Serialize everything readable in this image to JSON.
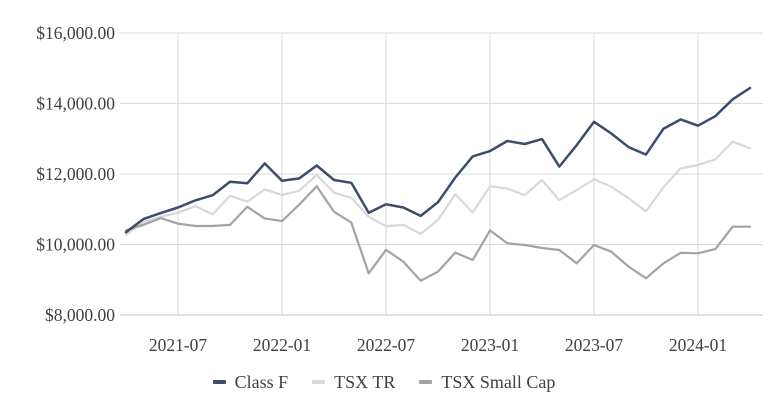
{
  "chart_data": {
    "type": "line",
    "title": "",
    "xlabel": "",
    "ylabel": "",
    "grid": true,
    "legend_position": "bottom",
    "ylim": [
      8000,
      16000
    ],
    "x": [
      "2021-04",
      "2021-05",
      "2021-06",
      "2021-07",
      "2021-08",
      "2021-09",
      "2021-10",
      "2021-11",
      "2021-12",
      "2022-01",
      "2022-02",
      "2022-03",
      "2022-04",
      "2022-05",
      "2022-06",
      "2022-07",
      "2022-08",
      "2022-09",
      "2022-10",
      "2022-11",
      "2022-12",
      "2023-01",
      "2023-02",
      "2023-03",
      "2023-04",
      "2023-05",
      "2023-06",
      "2023-07",
      "2023-08",
      "2023-09",
      "2023-10",
      "2023-11",
      "2023-12",
      "2024-01",
      "2024-02",
      "2024-03",
      "2024-04"
    ],
    "series": [
      {
        "name": "Class F",
        "color": "#3c4c6e",
        "stroke_width": 2.5,
        "values": [
          10350,
          10720,
          10890,
          11050,
          11250,
          11400,
          11780,
          11735,
          12300,
          11810,
          11875,
          12240,
          11830,
          11750,
          10900,
          11140,
          11050,
          10810,
          11200,
          11900,
          12500,
          12650,
          12935,
          12850,
          12990,
          12210,
          12820,
          13480,
          13150,
          12760,
          12550,
          13280,
          13550,
          13370,
          13640,
          14120,
          14440
        ]
      },
      {
        "name": "TSX TR",
        "color": "#d8d8d8",
        "stroke_width": 2.2,
        "values": [
          10280,
          10640,
          10790,
          10900,
          11090,
          10855,
          11385,
          11215,
          11565,
          11405,
          11525,
          11970,
          11470,
          11325,
          10790,
          10520,
          10555,
          10300,
          10695,
          11430,
          10905,
          11655,
          11590,
          11400,
          11830,
          11260,
          11545,
          11850,
          11640,
          11310,
          10940,
          11620,
          12160,
          12255,
          12415,
          12915,
          12730
        ]
      },
      {
        "name": "TSX Small Cap",
        "color": "#a3a3a3",
        "stroke_width": 2.2,
        "values": [
          10400,
          10560,
          10750,
          10590,
          10525,
          10525,
          10555,
          11070,
          10740,
          10665,
          11135,
          11655,
          10930,
          10620,
          9180,
          9850,
          9515,
          8970,
          9230,
          9770,
          9560,
          10400,
          10035,
          9985,
          9900,
          9845,
          9465,
          9985,
          9795,
          9370,
          9040,
          9465,
          9765,
          9750,
          9870,
          10505,
          10505
        ]
      }
    ],
    "y_ticks": {
      "values": [
        16000,
        14000,
        12000,
        10000,
        8000
      ],
      "labels": [
        "$16,000.00",
        "$14,000.00",
        "$12,000.00",
        "$10,000.00",
        "$8,000.00"
      ]
    },
    "x_ticks": {
      "month_indices": [
        3,
        9,
        15,
        21,
        27,
        33
      ],
      "labels": [
        "2021-07",
        "2022-01",
        "2022-07",
        "2023-01",
        "2023-07",
        "2024-01"
      ]
    }
  },
  "colors": {
    "background": "#ffffff",
    "gridline": "#d9d9d9",
    "axis_baseline": "#c6c6c6",
    "tick_text": "#404040"
  }
}
